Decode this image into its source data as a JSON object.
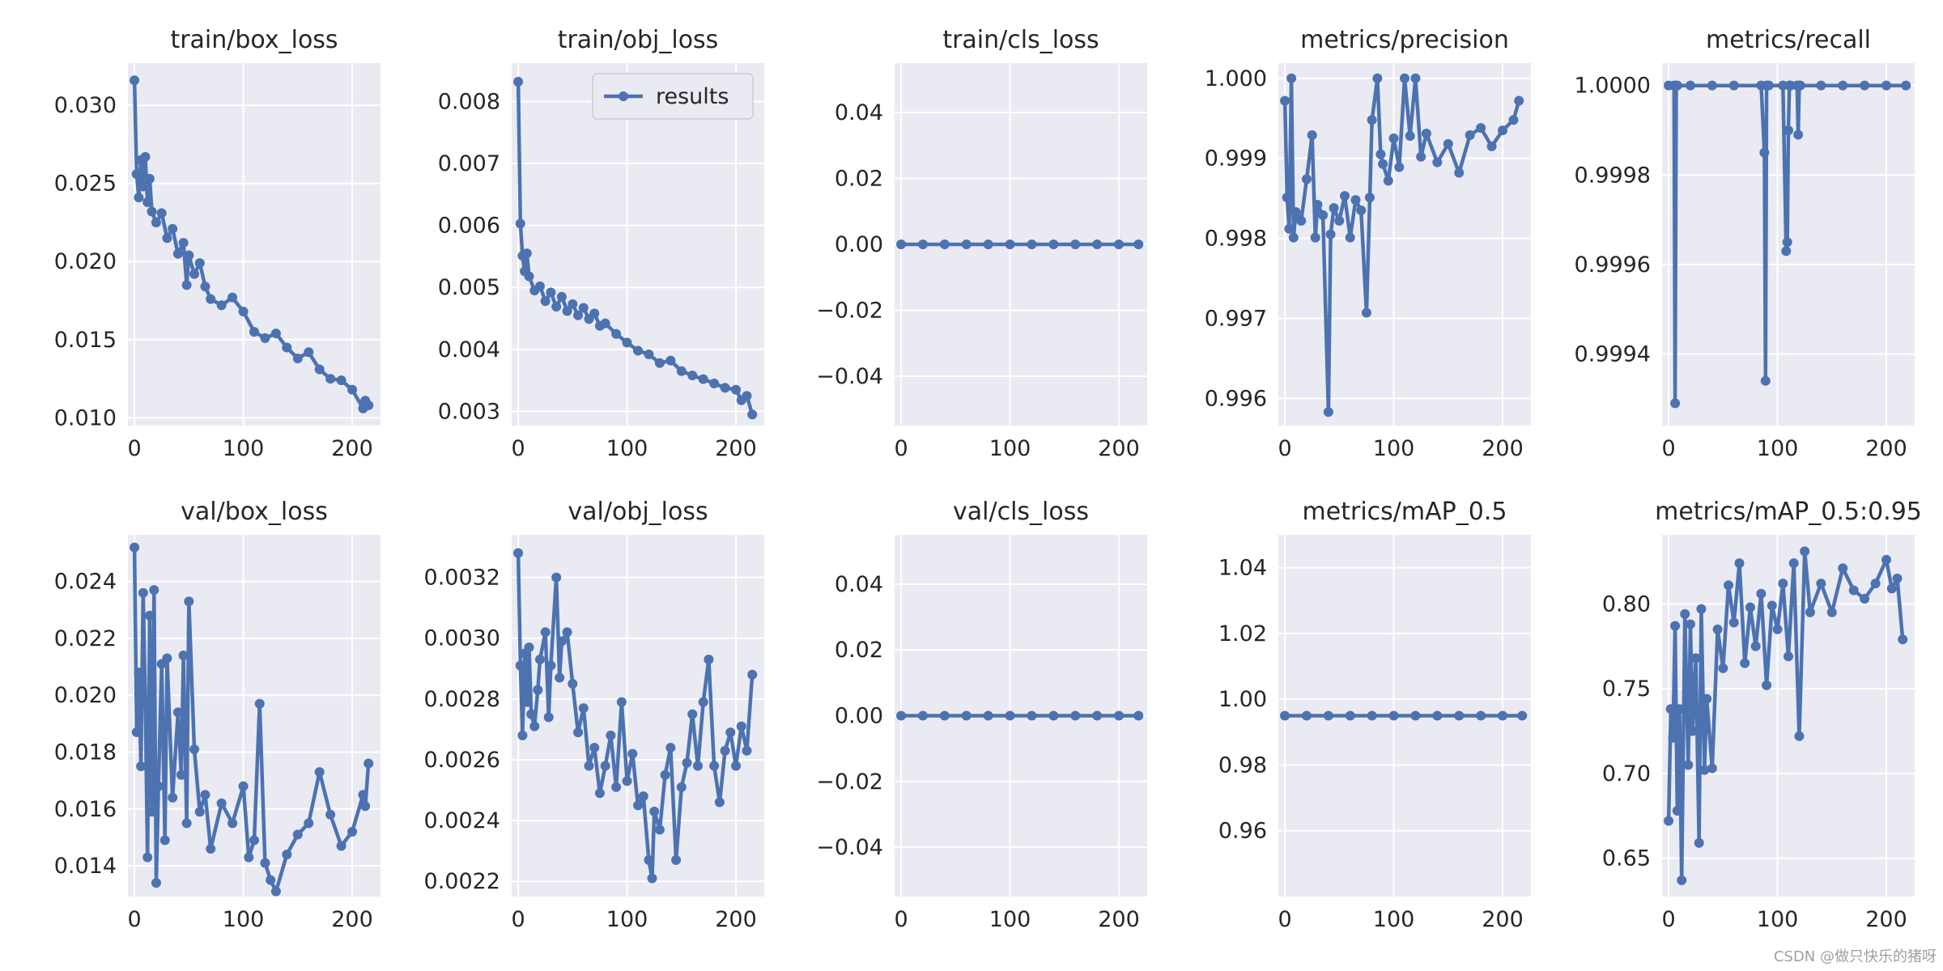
{
  "figure": {
    "watermark": "CSDN @做只快乐的猪呀"
  },
  "chart_data": [
    {
      "id": "train_box_loss",
      "type": "line",
      "title": "train/box_loss",
      "xlim": [
        -6,
        226
      ],
      "ylim": [
        0.0095,
        0.0327
      ],
      "xticks": [
        0,
        100,
        200
      ],
      "xtick_labels": [
        "0",
        "100",
        "200"
      ],
      "yticks": [
        0.01,
        0.015,
        0.02,
        0.025,
        0.03
      ],
      "ytick_labels": [
        "0.010",
        "0.015",
        "0.020",
        "0.025",
        "0.030"
      ],
      "series": [
        {
          "name": "results",
          "x": [
            0,
            2,
            4,
            6,
            8,
            10,
            12,
            14,
            16,
            20,
            25,
            30,
            35,
            40,
            45,
            48,
            50,
            55,
            60,
            65,
            70,
            80,
            90,
            100,
            110,
            120,
            130,
            140,
            150,
            160,
            170,
            180,
            190,
            200,
            210,
            212,
            215
          ],
          "values": [
            0.0316,
            0.0256,
            0.0241,
            0.0265,
            0.0248,
            0.0267,
            0.0238,
            0.0253,
            0.0232,
            0.0225,
            0.0231,
            0.0215,
            0.0221,
            0.0205,
            0.0212,
            0.0185,
            0.0204,
            0.0192,
            0.0199,
            0.0184,
            0.0176,
            0.0172,
            0.0177,
            0.0168,
            0.0155,
            0.0151,
            0.0154,
            0.0145,
            0.0138,
            0.0142,
            0.0131,
            0.0125,
            0.0124,
            0.0118,
            0.0106,
            0.0111,
            0.0108
          ]
        }
      ]
    },
    {
      "id": "train_obj_loss",
      "type": "line",
      "title": "train/obj_loss",
      "xlim": [
        -6,
        226
      ],
      "ylim": [
        0.00277,
        0.00862
      ],
      "xticks": [
        0,
        100,
        200
      ],
      "xtick_labels": [
        "0",
        "100",
        "200"
      ],
      "yticks": [
        0.003,
        0.004,
        0.005,
        0.006,
        0.007,
        0.008
      ],
      "ytick_labels": [
        "0.003",
        "0.004",
        "0.005",
        "0.006",
        "0.007",
        "0.008"
      ],
      "legend": {
        "label": "results",
        "position": "top-right"
      },
      "series": [
        {
          "name": "results",
          "x": [
            0,
            2,
            4,
            6,
            8,
            10,
            15,
            20,
            25,
            30,
            35,
            40,
            45,
            50,
            55,
            60,
            65,
            70,
            75,
            80,
            90,
            100,
            110,
            120,
            130,
            140,
            150,
            160,
            170,
            180,
            190,
            200,
            205,
            210,
            215
          ],
          "values": [
            0.00832,
            0.00603,
            0.00551,
            0.00526,
            0.00555,
            0.00518,
            0.00495,
            0.00502,
            0.00478,
            0.00492,
            0.00469,
            0.00485,
            0.00462,
            0.00473,
            0.00455,
            0.00467,
            0.00449,
            0.00458,
            0.00438,
            0.00442,
            0.00425,
            0.00411,
            0.00398,
            0.00392,
            0.00378,
            0.00382,
            0.00365,
            0.00358,
            0.00352,
            0.00345,
            0.00338,
            0.00335,
            0.00318,
            0.00325,
            0.00295
          ]
        }
      ]
    },
    {
      "id": "train_cls_loss",
      "type": "line",
      "title": "train/cls_loss",
      "xlim": [
        -6,
        226
      ],
      "ylim": [
        -0.055,
        0.055
      ],
      "xticks": [
        0,
        100,
        200
      ],
      "xtick_labels": [
        "0",
        "100",
        "200"
      ],
      "yticks": [
        -0.04,
        -0.02,
        0.0,
        0.02,
        0.04
      ],
      "ytick_labels": [
        "−0.04",
        "−0.02",
        "0.00",
        "0.02",
        "0.04"
      ],
      "series": [
        {
          "name": "results",
          "x": [
            0,
            20,
            40,
            60,
            80,
            100,
            120,
            140,
            160,
            180,
            200,
            218
          ],
          "values": [
            0,
            0,
            0,
            0,
            0,
            0,
            0,
            0,
            0,
            0,
            0,
            0
          ]
        }
      ]
    },
    {
      "id": "metrics_precision",
      "type": "line",
      "title": "metrics/precision",
      "xlim": [
        -6,
        226
      ],
      "ylim": [
        0.99566,
        1.00019
      ],
      "xticks": [
        0,
        100,
        200
      ],
      "xtick_labels": [
        "0",
        "100",
        "200"
      ],
      "yticks": [
        0.996,
        0.997,
        0.998,
        0.999,
        1.0
      ],
      "ytick_labels": [
        "0.996",
        "0.997",
        "0.998",
        "0.999",
        "1.000"
      ],
      "series": [
        {
          "name": "results",
          "x": [
            0,
            2,
            4,
            6,
            8,
            10,
            15,
            20,
            25,
            28,
            30,
            35,
            40,
            42,
            45,
            50,
            55,
            60,
            65,
            70,
            75,
            78,
            80,
            85,
            88,
            90,
            95,
            100,
            105,
            110,
            115,
            120,
            125,
            130,
            140,
            150,
            160,
            170,
            180,
            190,
            200,
            210,
            215
          ],
          "values": [
            0.99972,
            0.99851,
            0.99812,
            1.0,
            0.99801,
            0.99833,
            0.99822,
            0.99874,
            0.99929,
            0.99801,
            0.99842,
            0.99829,
            0.99583,
            0.99805,
            0.99838,
            0.99822,
            0.99853,
            0.99801,
            0.99848,
            0.99835,
            0.99707,
            0.99851,
            0.99948,
            1.0,
            0.99905,
            0.99893,
            0.99872,
            0.99925,
            0.99889,
            1.0,
            0.99928,
            1.0,
            0.99902,
            0.99931,
            0.99895,
            0.99918,
            0.99882,
            0.99929,
            0.99938,
            0.99915,
            0.99935,
            0.99948,
            0.99972
          ]
        }
      ]
    },
    {
      "id": "metrics_recall",
      "type": "line",
      "title": "metrics/recall",
      "xlim": [
        -6,
        226
      ],
      "ylim": [
        0.99924,
        1.00005
      ],
      "xticks": [
        0,
        100,
        200
      ],
      "xtick_labels": [
        "0",
        "100",
        "200"
      ],
      "yticks": [
        0.9994,
        0.9996,
        0.9998,
        1.0
      ],
      "ytick_labels": [
        "0.9994",
        "0.9996",
        "0.9998",
        "1.0000"
      ],
      "series": [
        {
          "name": "results",
          "x": [
            0,
            5,
            6,
            7,
            8,
            20,
            40,
            60,
            85,
            88,
            89,
            90,
            91,
            92,
            105,
            108,
            109,
            110,
            111,
            112,
            118,
            119,
            120,
            121,
            140,
            160,
            180,
            200,
            218
          ],
          "values": [
            1.0,
            1.0,
            0.99929,
            1.0,
            1.0,
            1.0,
            1.0,
            1.0,
            1.0,
            0.99985,
            0.99934,
            1.0,
            1.0,
            1.0,
            1.0,
            0.99963,
            0.99965,
            0.9999,
            1.0,
            1.0,
            1.0,
            0.99989,
            1.0,
            1.0,
            1.0,
            1.0,
            1.0,
            1.0,
            1.0
          ]
        }
      ]
    },
    {
      "id": "val_box_loss",
      "type": "line",
      "title": "val/box_loss",
      "xlim": [
        -6,
        226
      ],
      "ylim": [
        0.01292,
        0.02564
      ],
      "xticks": [
        0,
        100,
        200
      ],
      "xtick_labels": [
        "0",
        "100",
        "200"
      ],
      "yticks": [
        0.014,
        0.016,
        0.018,
        0.02,
        0.022,
        0.024
      ],
      "ytick_labels": [
        "0.014",
        "0.016",
        "0.018",
        "0.020",
        "0.022",
        "0.024"
      ],
      "series": [
        {
          "name": "results",
          "x": [
            0,
            2,
            4,
            6,
            8,
            10,
            12,
            14,
            16,
            18,
            20,
            22,
            25,
            28,
            30,
            35,
            40,
            43,
            45,
            48,
            50,
            55,
            60,
            65,
            70,
            80,
            90,
            100,
            105,
            110,
            115,
            120,
            125,
            130,
            140,
            150,
            160,
            170,
            180,
            190,
            200,
            210,
            212,
            215
          ],
          "values": [
            0.0252,
            0.0187,
            0.0208,
            0.0175,
            0.0236,
            0.0198,
            0.0143,
            0.0228,
            0.0159,
            0.0237,
            0.0134,
            0.0168,
            0.0211,
            0.0149,
            0.0213,
            0.0164,
            0.0194,
            0.0172,
            0.0214,
            0.0155,
            0.0233,
            0.0181,
            0.0159,
            0.0165,
            0.0146,
            0.0162,
            0.0155,
            0.0168,
            0.0143,
            0.0149,
            0.0197,
            0.0141,
            0.0135,
            0.0131,
            0.0144,
            0.0151,
            0.0155,
            0.0173,
            0.0158,
            0.0147,
            0.0152,
            0.0165,
            0.0161,
            0.0176
          ]
        }
      ]
    },
    {
      "id": "val_obj_loss",
      "type": "line",
      "title": "val/obj_loss",
      "xlim": [
        -6,
        226
      ],
      "ylim": [
        0.00215,
        0.00334
      ],
      "xticks": [
        0,
        100,
        200
      ],
      "xtick_labels": [
        "0",
        "100",
        "200"
      ],
      "yticks": [
        0.0022,
        0.0024,
        0.0026,
        0.0028,
        0.003,
        0.0032
      ],
      "ytick_labels": [
        "0.0022",
        "0.0024",
        "0.0026",
        "0.0028",
        "0.0030",
        "0.0032"
      ],
      "series": [
        {
          "name": "results",
          "x": [
            0,
            2,
            4,
            6,
            8,
            10,
            12,
            15,
            18,
            20,
            25,
            28,
            30,
            35,
            38,
            40,
            45,
            50,
            55,
            60,
            65,
            70,
            75,
            80,
            85,
            90,
            95,
            100,
            105,
            110,
            115,
            120,
            123,
            125,
            130,
            135,
            140,
            145,
            150,
            155,
            160,
            165,
            170,
            175,
            180,
            185,
            190,
            195,
            200,
            205,
            210,
            215
          ],
          "values": [
            0.00328,
            0.00291,
            0.00268,
            0.00295,
            0.00279,
            0.00297,
            0.00275,
            0.00271,
            0.00283,
            0.00293,
            0.00302,
            0.00274,
            0.00291,
            0.0032,
            0.00287,
            0.00299,
            0.00302,
            0.00285,
            0.00269,
            0.00277,
            0.00258,
            0.00264,
            0.00249,
            0.00258,
            0.00268,
            0.00251,
            0.00279,
            0.00253,
            0.00262,
            0.00245,
            0.00248,
            0.00227,
            0.00221,
            0.00243,
            0.00237,
            0.00255,
            0.00264,
            0.00227,
            0.00251,
            0.00259,
            0.00275,
            0.00258,
            0.00279,
            0.00293,
            0.00258,
            0.00246,
            0.00263,
            0.00269,
            0.00258,
            0.00271,
            0.00263,
            0.00288
          ]
        }
      ]
    },
    {
      "id": "val_cls_loss",
      "type": "line",
      "title": "val/cls_loss",
      "xlim": [
        -6,
        226
      ],
      "ylim": [
        -0.055,
        0.055
      ],
      "xticks": [
        0,
        100,
        200
      ],
      "xtick_labels": [
        "0",
        "100",
        "200"
      ],
      "yticks": [
        -0.04,
        -0.02,
        0.0,
        0.02,
        0.04
      ],
      "ytick_labels": [
        "−0.04",
        "−0.02",
        "0.00",
        "0.02",
        "0.04"
      ],
      "series": [
        {
          "name": "results",
          "x": [
            0,
            20,
            40,
            60,
            80,
            100,
            120,
            140,
            160,
            180,
            200,
            218
          ],
          "values": [
            0,
            0,
            0,
            0,
            0,
            0,
            0,
            0,
            0,
            0,
            0,
            0
          ]
        }
      ]
    },
    {
      "id": "metrics_map_05",
      "type": "line",
      "title": "metrics/mAP_0.5",
      "xlim": [
        -6,
        226
      ],
      "ylim": [
        0.94,
        1.05
      ],
      "xticks": [
        0,
        100,
        200
      ],
      "xtick_labels": [
        "0",
        "100",
        "200"
      ],
      "yticks": [
        0.96,
        0.98,
        1.0,
        1.02,
        1.04
      ],
      "ytick_labels": [
        "0.96",
        "0.98",
        "1.00",
        "1.02",
        "1.04"
      ],
      "series": [
        {
          "name": "results",
          "x": [
            0,
            20,
            40,
            60,
            80,
            100,
            120,
            140,
            160,
            180,
            200,
            218
          ],
          "values": [
            0.995,
            0.995,
            0.995,
            0.995,
            0.995,
            0.995,
            0.995,
            0.995,
            0.995,
            0.995,
            0.995,
            0.995
          ]
        }
      ]
    },
    {
      "id": "metrics_map_05_095",
      "type": "line",
      "title": "metrics/mAP_0.5:0.95",
      "xlim": [
        -6,
        226
      ],
      "ylim": [
        0.6274,
        0.8407
      ],
      "xticks": [
        0,
        100,
        200
      ],
      "xtick_labels": [
        "0",
        "100",
        "200"
      ],
      "yticks": [
        0.65,
        0.7,
        0.75,
        0.8
      ],
      "ytick_labels": [
        "0.65",
        "0.70",
        "0.75",
        "0.80"
      ],
      "series": [
        {
          "name": "results",
          "x": [
            0,
            2,
            4,
            6,
            8,
            10,
            12,
            15,
            18,
            20,
            22,
            25,
            28,
            30,
            33,
            35,
            40,
            45,
            50,
            55,
            60,
            65,
            70,
            75,
            80,
            85,
            90,
            95,
            100,
            105,
            110,
            115,
            120,
            125,
            130,
            140,
            150,
            160,
            170,
            180,
            190,
            200,
            205,
            210,
            215
          ],
          "values": [
            0.672,
            0.738,
            0.721,
            0.787,
            0.678,
            0.738,
            0.637,
            0.794,
            0.705,
            0.788,
            0.725,
            0.768,
            0.659,
            0.797,
            0.702,
            0.744,
            0.703,
            0.785,
            0.762,
            0.811,
            0.789,
            0.824,
            0.765,
            0.798,
            0.775,
            0.806,
            0.752,
            0.799,
            0.785,
            0.812,
            0.769,
            0.824,
            0.722,
            0.831,
            0.795,
            0.812,
            0.795,
            0.821,
            0.808,
            0.803,
            0.812,
            0.826,
            0.809,
            0.815,
            0.779
          ]
        }
      ]
    }
  ]
}
